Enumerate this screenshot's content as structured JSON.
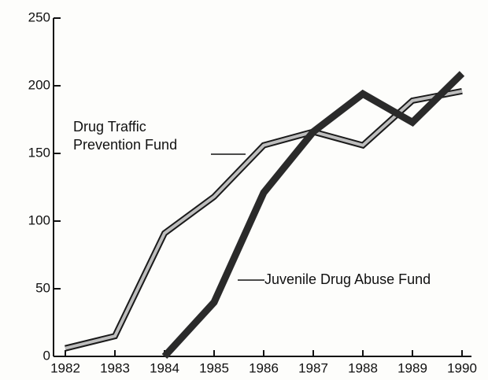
{
  "chart_data": {
    "type": "line",
    "categories": [
      "1982",
      "1983",
      "1984",
      "1985",
      "1986",
      "1987",
      "1988",
      "1989",
      "1990"
    ],
    "series": [
      {
        "name": "Drug Traffic Prevention Fund",
        "color": "#bdbdbd",
        "values": [
          6,
          15,
          91,
          118,
          156,
          166,
          156,
          189,
          196
        ]
      },
      {
        "name": "Juvenile Drug Abuse Fund",
        "color": "#2a2a2a",
        "values": [
          null,
          null,
          0,
          40,
          121,
          166,
          194,
          173,
          209
        ]
      }
    ],
    "ylim": [
      0,
      250
    ],
    "yticks": [
      0,
      50,
      100,
      150,
      200,
      250
    ],
    "grid": false
  }
}
